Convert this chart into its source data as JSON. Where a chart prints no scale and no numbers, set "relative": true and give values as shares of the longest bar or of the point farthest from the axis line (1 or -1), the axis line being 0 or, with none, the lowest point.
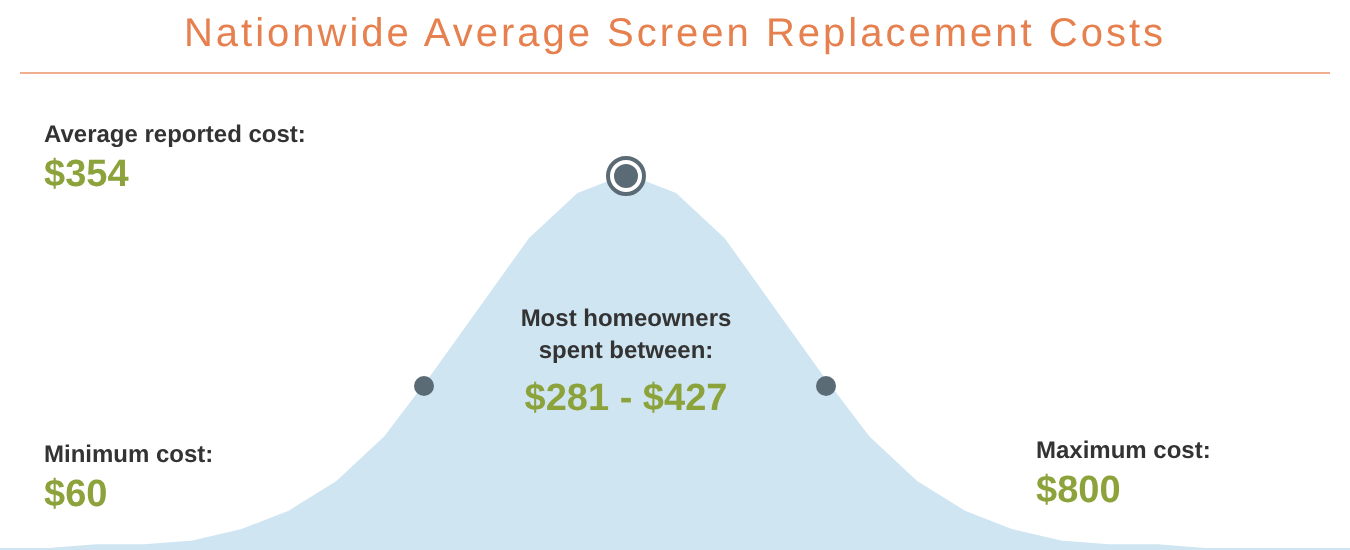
{
  "chart_data": {
    "type": "area",
    "relative": true,
    "title": "Nationwide Average Screen Replacement Costs",
    "categories": [
      null,
      null,
      null,
      null,
      null,
      null,
      null,
      null,
      null,
      null,
      null,
      null,
      null,
      null,
      null,
      null,
      null,
      null,
      null,
      null,
      null,
      null,
      null,
      null,
      null,
      null,
      null,
      null,
      null
    ],
    "series": [
      {
        "color": "#cfe5f1",
        "values": [
          0,
          0,
          0.01,
          0.01,
          0.02,
          0.05,
          0.1,
          0.18,
          0.3,
          0.47,
          0.65,
          0.83,
          0.95,
          1,
          0.95,
          0.83,
          0.65,
          0.47,
          0.3,
          0.18,
          0.1,
          0.05,
          0.02,
          0.01,
          0.01,
          0,
          0,
          0,
          0
        ]
      }
    ],
    "annotations": [
      "Average reported cost:",
      "$354",
      "Most homeowners spent between:",
      "$281 - $427",
      "Minimum cost:",
      "$60",
      "Maximum cost:",
      "$800"
    ]
  }
}
